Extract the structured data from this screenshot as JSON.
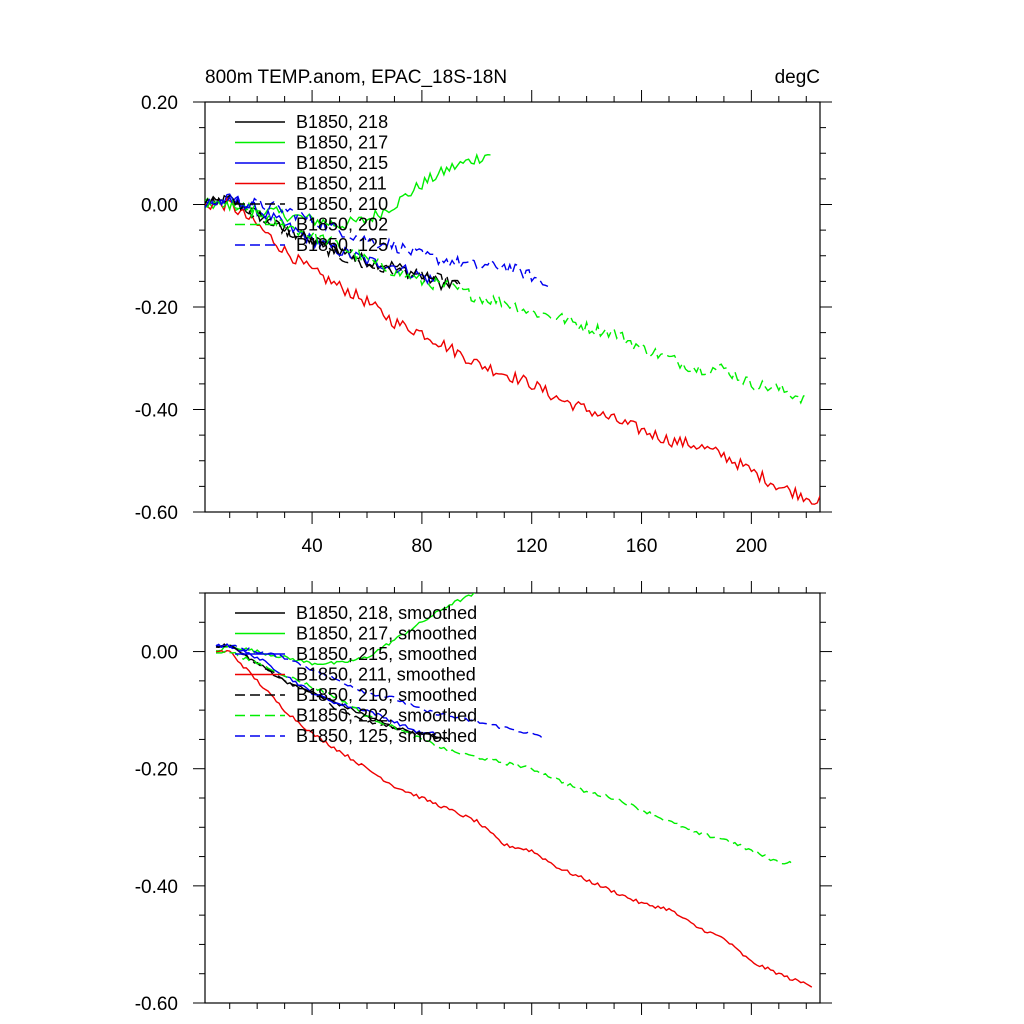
{
  "chart_data": [
    {
      "type": "line",
      "title": "800m TEMP.anom, EPAC_18S-18N",
      "units": "degC",
      "xlabel": "",
      "ylabel": "",
      "xlim": [
        1,
        225
      ],
      "ylim": [
        -0.6,
        0.2
      ],
      "xticks": [
        40,
        80,
        120,
        160,
        200
      ],
      "xtick_labels": [
        "40",
        "80",
        "120",
        "160",
        "200"
      ],
      "yticks": [
        0.2,
        0.0,
        -0.2,
        -0.4,
        -0.6
      ],
      "ytick_labels": [
        "0.20",
        "0.00",
        "-0.20",
        "-0.40",
        "-0.60"
      ],
      "legend_position": "top-left",
      "grid": false,
      "series": [
        {
          "name": "B1850, 218",
          "color": "#000000",
          "dash": "solid",
          "noise": 0.012,
          "points": [
            [
              1,
              0.0
            ],
            [
              10,
              0.01
            ],
            [
              20,
              -0.02
            ],
            [
              30,
              -0.05
            ],
            [
              40,
              -0.07
            ],
            [
              50,
              -0.09
            ],
            [
              60,
              -0.11
            ],
            [
              70,
              -0.12
            ],
            [
              80,
              -0.14
            ],
            [
              90,
              -0.16
            ],
            [
              93,
              -0.15
            ]
          ]
        },
        {
          "name": "B1850, 217",
          "color": "#00ee00",
          "dash": "solid",
          "noise": 0.012,
          "points": [
            [
              1,
              0.0
            ],
            [
              10,
              0.0
            ],
            [
              20,
              -0.01
            ],
            [
              30,
              -0.02
            ],
            [
              40,
              -0.03
            ],
            [
              50,
              -0.04
            ],
            [
              60,
              -0.03
            ],
            [
              70,
              0.0
            ],
            [
              80,
              0.04
            ],
            [
              90,
              0.07
            ],
            [
              100,
              0.09
            ],
            [
              105,
              0.1
            ]
          ]
        },
        {
          "name": "B1850, 215",
          "color": "#0000ee",
          "dash": "solid",
          "noise": 0.012,
          "points": [
            [
              1,
              0.0
            ],
            [
              10,
              0.01
            ],
            [
              20,
              -0.01
            ],
            [
              30,
              -0.04
            ],
            [
              40,
              -0.07
            ],
            [
              50,
              -0.09
            ],
            [
              60,
              -0.11
            ],
            [
              70,
              -0.12
            ],
            [
              80,
              -0.14
            ],
            [
              85,
              -0.15
            ]
          ]
        },
        {
          "name": "B1850, 211",
          "color": "#ee0000",
          "dash": "solid",
          "noise": 0.012,
          "points": [
            [
              1,
              0.0
            ],
            [
              10,
              0.0
            ],
            [
              20,
              -0.04
            ],
            [
              30,
              -0.09
            ],
            [
              40,
              -0.13
            ],
            [
              50,
              -0.16
            ],
            [
              60,
              -0.19
            ],
            [
              70,
              -0.23
            ],
            [
              80,
              -0.25
            ],
            [
              90,
              -0.28
            ],
            [
              100,
              -0.31
            ],
            [
              110,
              -0.33
            ],
            [
              120,
              -0.35
            ],
            [
              130,
              -0.38
            ],
            [
              140,
              -0.4
            ],
            [
              150,
              -0.42
            ],
            [
              160,
              -0.44
            ],
            [
              170,
              -0.46
            ],
            [
              180,
              -0.47
            ],
            [
              190,
              -0.49
            ],
            [
              200,
              -0.52
            ],
            [
              210,
              -0.55
            ],
            [
              220,
              -0.57
            ],
            [
              225,
              -0.58
            ]
          ]
        },
        {
          "name": "B1850, 210",
          "color": "#000000",
          "dash": "10,5",
          "noise": 0.012,
          "points": [
            [
              1,
              0.0
            ],
            [
              10,
              0.01
            ],
            [
              20,
              -0.02
            ],
            [
              30,
              -0.05
            ],
            [
              40,
              -0.07
            ],
            [
              50,
              -0.1
            ],
            [
              60,
              -0.12
            ],
            [
              70,
              -0.13
            ],
            [
              80,
              -0.14
            ],
            [
              90,
              -0.15
            ],
            [
              94,
              -0.16
            ]
          ]
        },
        {
          "name": "B1850, 202",
          "color": "#00ee00",
          "dash": "10,5",
          "noise": 0.012,
          "points": [
            [
              1,
              0.0
            ],
            [
              10,
              0.0
            ],
            [
              20,
              -0.02
            ],
            [
              30,
              -0.04
            ],
            [
              40,
              -0.06
            ],
            [
              50,
              -0.08
            ],
            [
              60,
              -0.11
            ],
            [
              70,
              -0.13
            ],
            [
              80,
              -0.15
            ],
            [
              90,
              -0.16
            ],
            [
              100,
              -0.18
            ],
            [
              110,
              -0.19
            ],
            [
              120,
              -0.21
            ],
            [
              130,
              -0.22
            ],
            [
              140,
              -0.24
            ],
            [
              150,
              -0.25
            ],
            [
              160,
              -0.28
            ],
            [
              170,
              -0.3
            ],
            [
              180,
              -0.32
            ],
            [
              190,
              -0.32
            ],
            [
              200,
              -0.35
            ],
            [
              210,
              -0.36
            ],
            [
              215,
              -0.37
            ],
            [
              220,
              -0.38
            ]
          ]
        },
        {
          "name": "B1850, 125",
          "color": "#0000ee",
          "dash": "10,5",
          "noise": 0.012,
          "points": [
            [
              1,
              0.0
            ],
            [
              10,
              0.01
            ],
            [
              20,
              0.0
            ],
            [
              30,
              -0.01
            ],
            [
              40,
              -0.03
            ],
            [
              50,
              -0.05
            ],
            [
              60,
              -0.07
            ],
            [
              70,
              -0.08
            ],
            [
              80,
              -0.1
            ],
            [
              90,
              -0.11
            ],
            [
              100,
              -0.12
            ],
            [
              110,
              -0.12
            ],
            [
              120,
              -0.14
            ],
            [
              126,
              -0.16
            ]
          ]
        }
      ]
    },
    {
      "type": "line",
      "title": "",
      "xlabel": "",
      "ylabel": "",
      "xlim": [
        1,
        225
      ],
      "ylim": [
        -0.6,
        0.1
      ],
      "xticks": [
        40,
        80,
        120,
        160,
        200
      ],
      "xtick_labels": [],
      "yticks": [
        0.0,
        -0.2,
        -0.4,
        -0.6
      ],
      "ytick_labels": [
        "0.00",
        "-0.20",
        "-0.40",
        "-0.60"
      ],
      "legend_position": "top-left",
      "grid": false,
      "series": [
        {
          "name": "B1850, 218, smoothed",
          "color": "#000000",
          "dash": "solid",
          "noise": 0.003,
          "points": [
            [
              5,
              0.01
            ],
            [
              10,
              0.01
            ],
            [
              20,
              -0.02
            ],
            [
              30,
              -0.05
            ],
            [
              40,
              -0.07
            ],
            [
              50,
              -0.09
            ],
            [
              60,
              -0.11
            ],
            [
              70,
              -0.13
            ],
            [
              80,
              -0.14
            ],
            [
              88,
              -0.15
            ]
          ]
        },
        {
          "name": "B1850, 217, smoothed",
          "color": "#00ee00",
          "dash": "solid",
          "noise": 0.003,
          "points": [
            [
              5,
              0.0
            ],
            [
              10,
              0.01
            ],
            [
              20,
              0.0
            ],
            [
              30,
              -0.01
            ],
            [
              40,
              -0.02
            ],
            [
              50,
              -0.02
            ],
            [
              60,
              -0.01
            ],
            [
              70,
              0.02
            ],
            [
              80,
              0.05
            ],
            [
              90,
              0.08
            ],
            [
              100,
              0.1
            ]
          ]
        },
        {
          "name": "B1850, 215, smoothed",
          "color": "#0000ee",
          "dash": "solid",
          "noise": 0.003,
          "points": [
            [
              5,
              0.01
            ],
            [
              10,
              0.01
            ],
            [
              20,
              -0.01
            ],
            [
              30,
              -0.04
            ],
            [
              40,
              -0.07
            ],
            [
              50,
              -0.09
            ],
            [
              60,
              -0.1
            ],
            [
              70,
              -0.12
            ],
            [
              80,
              -0.14
            ],
            [
              85,
              -0.14
            ]
          ]
        },
        {
          "name": "B1850, 211, smoothed",
          "color": "#ee0000",
          "dash": "solid",
          "noise": 0.003,
          "points": [
            [
              5,
              0.0
            ],
            [
              10,
              0.0
            ],
            [
              20,
              -0.05
            ],
            [
              30,
              -0.1
            ],
            [
              40,
              -0.14
            ],
            [
              50,
              -0.17
            ],
            [
              60,
              -0.2
            ],
            [
              70,
              -0.23
            ],
            [
              80,
              -0.25
            ],
            [
              90,
              -0.27
            ],
            [
              100,
              -0.29
            ],
            [
              110,
              -0.33
            ],
            [
              120,
              -0.34
            ],
            [
              130,
              -0.37
            ],
            [
              140,
              -0.39
            ],
            [
              150,
              -0.41
            ],
            [
              160,
              -0.43
            ],
            [
              170,
              -0.44
            ],
            [
              180,
              -0.47
            ],
            [
              190,
              -0.49
            ],
            [
              200,
              -0.53
            ],
            [
              210,
              -0.55
            ],
            [
              215,
              -0.56
            ],
            [
              222,
              -0.57
            ]
          ]
        },
        {
          "name": "B1850, 210, smoothed",
          "color": "#000000",
          "dash": "10,5",
          "noise": 0.003,
          "points": [
            [
              5,
              0.01
            ],
            [
              10,
              0.01
            ],
            [
              20,
              -0.02
            ],
            [
              30,
              -0.05
            ],
            [
              40,
              -0.07
            ],
            [
              50,
              -0.1
            ],
            [
              60,
              -0.12
            ],
            [
              70,
              -0.13
            ],
            [
              80,
              -0.14
            ],
            [
              90,
              -0.15
            ]
          ]
        },
        {
          "name": "B1850, 202, smoothed",
          "color": "#00ee00",
          "dash": "10,5",
          "noise": 0.003,
          "points": [
            [
              5,
              0.0
            ],
            [
              10,
              0.0
            ],
            [
              20,
              -0.02
            ],
            [
              30,
              -0.04
            ],
            [
              40,
              -0.06
            ],
            [
              50,
              -0.08
            ],
            [
              60,
              -0.11
            ],
            [
              70,
              -0.13
            ],
            [
              80,
              -0.15
            ],
            [
              90,
              -0.17
            ],
            [
              100,
              -0.18
            ],
            [
              110,
              -0.19
            ],
            [
              120,
              -0.2
            ],
            [
              130,
              -0.22
            ],
            [
              140,
              -0.24
            ],
            [
              150,
              -0.25
            ],
            [
              160,
              -0.27
            ],
            [
              170,
              -0.29
            ],
            [
              180,
              -0.31
            ],
            [
              190,
              -0.32
            ],
            [
              200,
              -0.34
            ],
            [
              210,
              -0.36
            ],
            [
              215,
              -0.36
            ]
          ]
        },
        {
          "name": "B1850, 125, smoothed",
          "color": "#0000ee",
          "dash": "10,5",
          "noise": 0.003,
          "points": [
            [
              5,
              0.01
            ],
            [
              10,
              0.01
            ],
            [
              20,
              0.0
            ],
            [
              30,
              -0.01
            ],
            [
              40,
              -0.03
            ],
            [
              50,
              -0.05
            ],
            [
              60,
              -0.07
            ],
            [
              70,
              -0.08
            ],
            [
              80,
              -0.1
            ],
            [
              90,
              -0.11
            ],
            [
              100,
              -0.12
            ],
            [
              110,
              -0.13
            ],
            [
              120,
              -0.14
            ],
            [
              125,
              -0.15
            ]
          ]
        }
      ]
    }
  ]
}
